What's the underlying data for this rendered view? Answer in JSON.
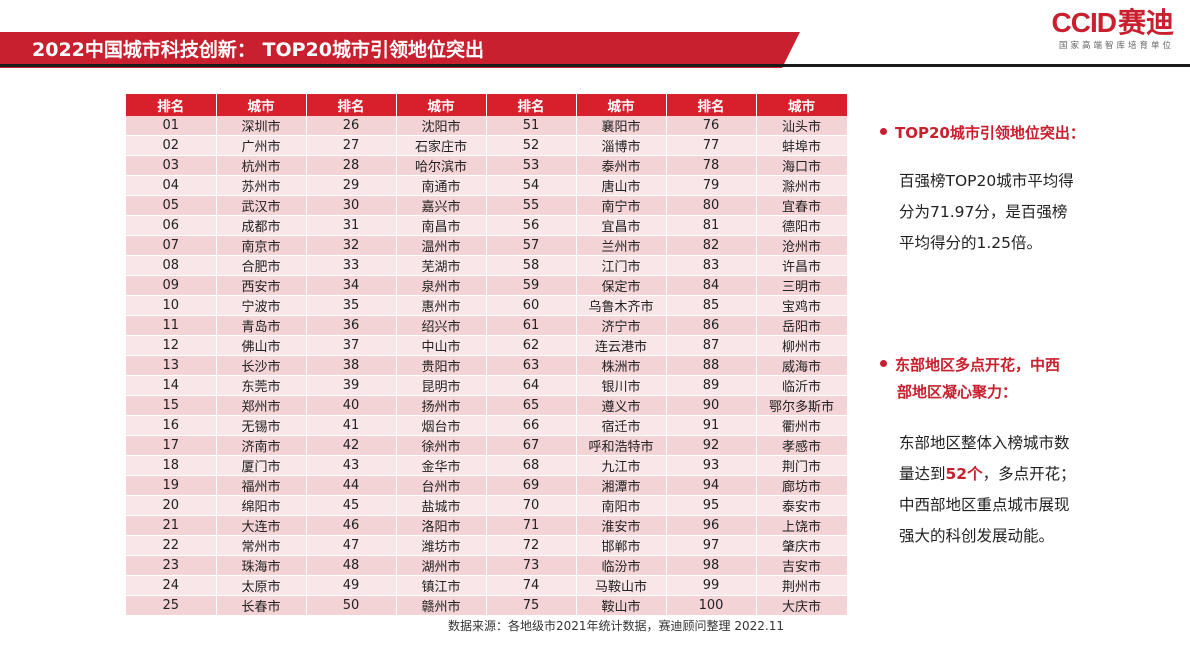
{
  "header": {
    "title": "2022中国城市科技创新： TOP20城市引领地位突出"
  },
  "logo": {
    "brand": "CCID",
    "brand_zh": "赛迪",
    "tagline": "国家高端智库培育单位"
  },
  "table": {
    "headers": [
      "排名",
      "城市",
      "排名",
      "城市",
      "排名",
      "城市",
      "排名",
      "城市"
    ],
    "rows": [
      [
        "01",
        "深圳市",
        "26",
        "沈阳市",
        "51",
        "襄阳市",
        "76",
        "汕头市"
      ],
      [
        "02",
        "广州市",
        "27",
        "石家庄市",
        "52",
        "淄博市",
        "77",
        "蚌埠市"
      ],
      [
        "03",
        "杭州市",
        "28",
        "哈尔滨市",
        "53",
        "泰州市",
        "78",
        "海口市"
      ],
      [
        "04",
        "苏州市",
        "29",
        "南通市",
        "54",
        "唐山市",
        "79",
        "滁州市"
      ],
      [
        "05",
        "武汉市",
        "30",
        "嘉兴市",
        "55",
        "南宁市",
        "80",
        "宜春市"
      ],
      [
        "06",
        "成都市",
        "31",
        "南昌市",
        "56",
        "宜昌市",
        "81",
        "德阳市"
      ],
      [
        "07",
        "南京市",
        "32",
        "温州市",
        "57",
        "兰州市",
        "82",
        "沧州市"
      ],
      [
        "08",
        "合肥市",
        "33",
        "芜湖市",
        "58",
        "江门市",
        "83",
        "许昌市"
      ],
      [
        "09",
        "西安市",
        "34",
        "泉州市",
        "59",
        "保定市",
        "84",
        "三明市"
      ],
      [
        "10",
        "宁波市",
        "35",
        "惠州市",
        "60",
        "乌鲁木齐市",
        "85",
        "宝鸡市"
      ],
      [
        "11",
        "青岛市",
        "36",
        "绍兴市",
        "61",
        "济宁市",
        "86",
        "岳阳市"
      ],
      [
        "12",
        "佛山市",
        "37",
        "中山市",
        "62",
        "连云港市",
        "87",
        "柳州市"
      ],
      [
        "13",
        "长沙市",
        "38",
        "贵阳市",
        "63",
        "株洲市",
        "88",
        "威海市"
      ],
      [
        "14",
        "东莞市",
        "39",
        "昆明市",
        "64",
        "银川市",
        "89",
        "临沂市"
      ],
      [
        "15",
        "郑州市",
        "40",
        "扬州市",
        "65",
        "遵义市",
        "90",
        "鄂尔多斯市"
      ],
      [
        "16",
        "无锡市",
        "41",
        "烟台市",
        "66",
        "宿迁市",
        "91",
        "衢州市"
      ],
      [
        "17",
        "济南市",
        "42",
        "徐州市",
        "67",
        "呼和浩特市",
        "92",
        "孝感市"
      ],
      [
        "18",
        "厦门市",
        "43",
        "金华市",
        "68",
        "九江市",
        "93",
        "荆门市"
      ],
      [
        "19",
        "福州市",
        "44",
        "台州市",
        "69",
        "湘潭市",
        "94",
        "廊坊市"
      ],
      [
        "20",
        "绵阳市",
        "45",
        "盐城市",
        "70",
        "南阳市",
        "95",
        "泰安市"
      ],
      [
        "21",
        "大连市",
        "46",
        "洛阳市",
        "71",
        "淮安市",
        "96",
        "上饶市"
      ],
      [
        "22",
        "常州市",
        "47",
        "潍坊市",
        "72",
        "邯郸市",
        "97",
        "肇庆市"
      ],
      [
        "23",
        "珠海市",
        "48",
        "湖州市",
        "73",
        "临汾市",
        "98",
        "吉安市"
      ],
      [
        "24",
        "太原市",
        "49",
        "镇江市",
        "74",
        "马鞍山市",
        "99",
        "荆州市"
      ],
      [
        "25",
        "长春市",
        "50",
        "赣州市",
        "75",
        "鞍山市",
        "100",
        "大庆市"
      ]
    ]
  },
  "source_note": "数据来源：各地级市2021年统计数据，赛迪顾问整理 2022.11",
  "points": [
    {
      "heading_lines": [
        "TOP20城市引领地位突出："
      ],
      "body_lines": [
        "百强榜TOP20城市平均得",
        "分为71.97分，是百强榜",
        "平均得分的1.25倍。"
      ]
    },
    {
      "heading_lines": [
        "东部地区多点开花，中西",
        "部地区凝心聚力："
      ],
      "body_line1": "东部地区整体入榜城市数",
      "body_line2_pre": "量达到",
      "body_line2_highlight": "52个",
      "body_line2_post": "，多点开花；",
      "body_line3": "中西部地区重点城市展现",
      "body_line4": "强大的科创发展动能。"
    }
  ],
  "colors": {
    "accent_red": "#c8202e",
    "table_header": "#d8202d",
    "row_light": "#f9e6e8",
    "row_dark": "#f4d3d6"
  }
}
